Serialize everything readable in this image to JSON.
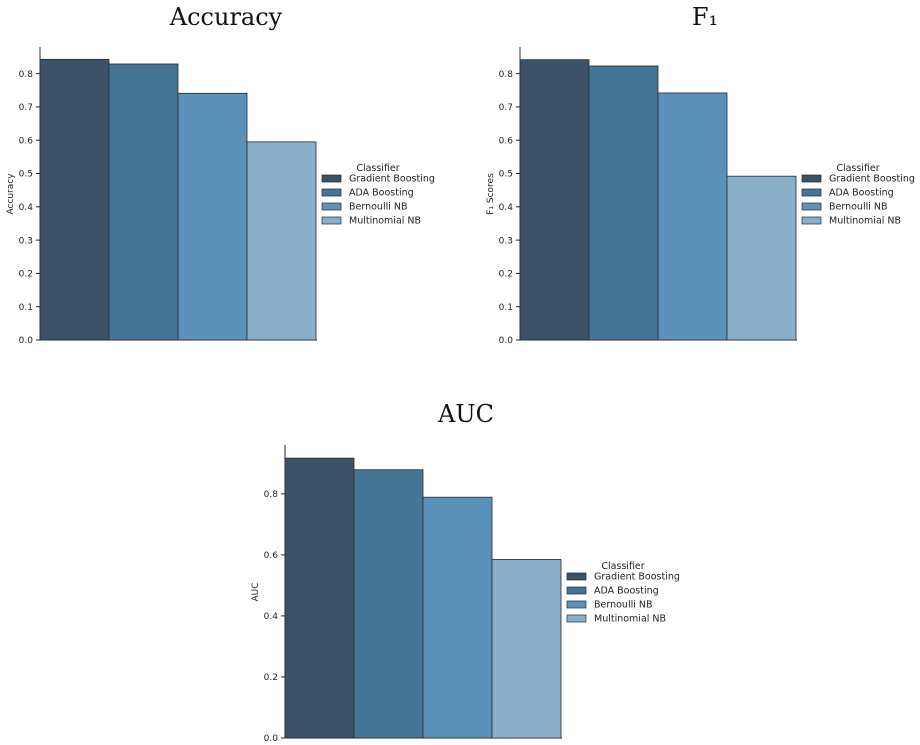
{
  "palette": [
    "#3c5268",
    "#447596",
    "#5b92bb",
    "#89afca"
  ],
  "chart_data": [
    {
      "type": "bar",
      "title": "Accuracy",
      "ylabel": "Accuracy",
      "ylim": [
        0,
        0.88
      ],
      "yticks": [
        0.0,
        0.1,
        0.2,
        0.3,
        0.4,
        0.5,
        0.6,
        0.7,
        0.8
      ],
      "ytick_labels": [
        "0.0",
        "0.1",
        "0.2",
        "0.3",
        "0.4",
        "0.5",
        "0.6",
        "0.7",
        "0.8"
      ],
      "legend_title": "Classifier",
      "legend_position": "right",
      "series": [
        {
          "name": "Gradient Boosting",
          "value": 0.843
        },
        {
          "name": "ADA Boosting",
          "value": 0.829
        },
        {
          "name": "Bernoulli NB",
          "value": 0.741
        },
        {
          "name": "Multinomial NB",
          "value": 0.595
        }
      ]
    },
    {
      "type": "bar",
      "title": "F₁",
      "ylabel": "F₁ Scores",
      "ylim": [
        0,
        0.88
      ],
      "yticks": [
        0.0,
        0.1,
        0.2,
        0.3,
        0.4,
        0.5,
        0.6,
        0.7,
        0.8
      ],
      "ytick_labels": [
        "0.0",
        "0.1",
        "0.2",
        "0.3",
        "0.4",
        "0.5",
        "0.6",
        "0.7",
        "0.8"
      ],
      "legend_title": "Classifier",
      "legend_position": "right",
      "series": [
        {
          "name": "Gradient Boosting",
          "value": 0.842
        },
        {
          "name": "ADA Boosting",
          "value": 0.823
        },
        {
          "name": "Bernoulli NB",
          "value": 0.742
        },
        {
          "name": "Multinomial NB",
          "value": 0.492
        }
      ]
    },
    {
      "type": "bar",
      "title": "AUC",
      "ylabel": "AUC",
      "ylim": [
        0,
        0.96
      ],
      "yticks": [
        0.0,
        0.2,
        0.4,
        0.6,
        0.8
      ],
      "ytick_labels": [
        "0.0",
        "0.2",
        "0.4",
        "0.6",
        "0.8"
      ],
      "legend_title": "Classifier",
      "legend_position": "right",
      "series": [
        {
          "name": "Gradient Boosting",
          "value": 0.917
        },
        {
          "name": "ADA Boosting",
          "value": 0.879
        },
        {
          "name": "Bernoulli NB",
          "value": 0.789
        },
        {
          "name": "Multinomial NB",
          "value": 0.585
        }
      ]
    }
  ]
}
